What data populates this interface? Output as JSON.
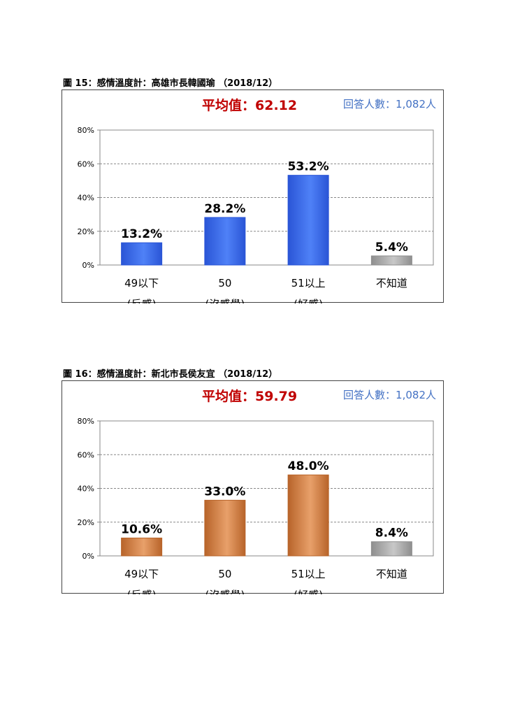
{
  "charts": [
    {
      "figure_title": "圖 15：感情溫度計：高雄市長韓國瑜 （2018/12）",
      "average_text": "平均值：62.12",
      "respondents_text": "回答人數：1,082人",
      "colors": {
        "bar": "#4f81f7",
        "bar_dark": "#2a55d6",
        "unknown": "#c8c8c8",
        "unknown_dark": "#8e8e8e"
      }
    },
    {
      "figure_title": "圖 16：感情溫度計：新北市長侯友宜 （2018/12）",
      "average_text": "平均值：59.79",
      "respondents_text": "回答人數：1,082人",
      "colors": {
        "bar": "#e8a06a",
        "bar_dark": "#b8642a",
        "unknown": "#c8c8c8",
        "unknown_dark": "#8e8e8e"
      }
    }
  ],
  "chart_data": [
    {
      "type": "bar",
      "title": "",
      "categories": [
        "49以下",
        "50",
        "51以上",
        "不知道"
      ],
      "category_sublabels": [
        "(反感)",
        "(沒感覺)",
        "(好感)",
        ""
      ],
      "values": [
        13.2,
        28.2,
        53.2,
        5.4
      ],
      "value_labels": [
        "13.2%",
        "28.2%",
        "53.2%",
        "5.4%"
      ],
      "ylim": [
        0,
        80
      ],
      "yticks": [
        "0%",
        "20%",
        "40%",
        "60%",
        "80%"
      ],
      "grid": true
    },
    {
      "type": "bar",
      "title": "",
      "categories": [
        "49以下",
        "50",
        "51以上",
        "不知道"
      ],
      "category_sublabels": [
        "(反感)",
        "(沒感覺)",
        "(好感)",
        ""
      ],
      "values": [
        10.6,
        33.0,
        48.0,
        8.4
      ],
      "value_labels": [
        "10.6%",
        "33.0%",
        "48.0%",
        "8.4%"
      ],
      "ylim": [
        0,
        80
      ],
      "yticks": [
        "0%",
        "20%",
        "40%",
        "60%",
        "80%"
      ],
      "grid": true
    }
  ]
}
